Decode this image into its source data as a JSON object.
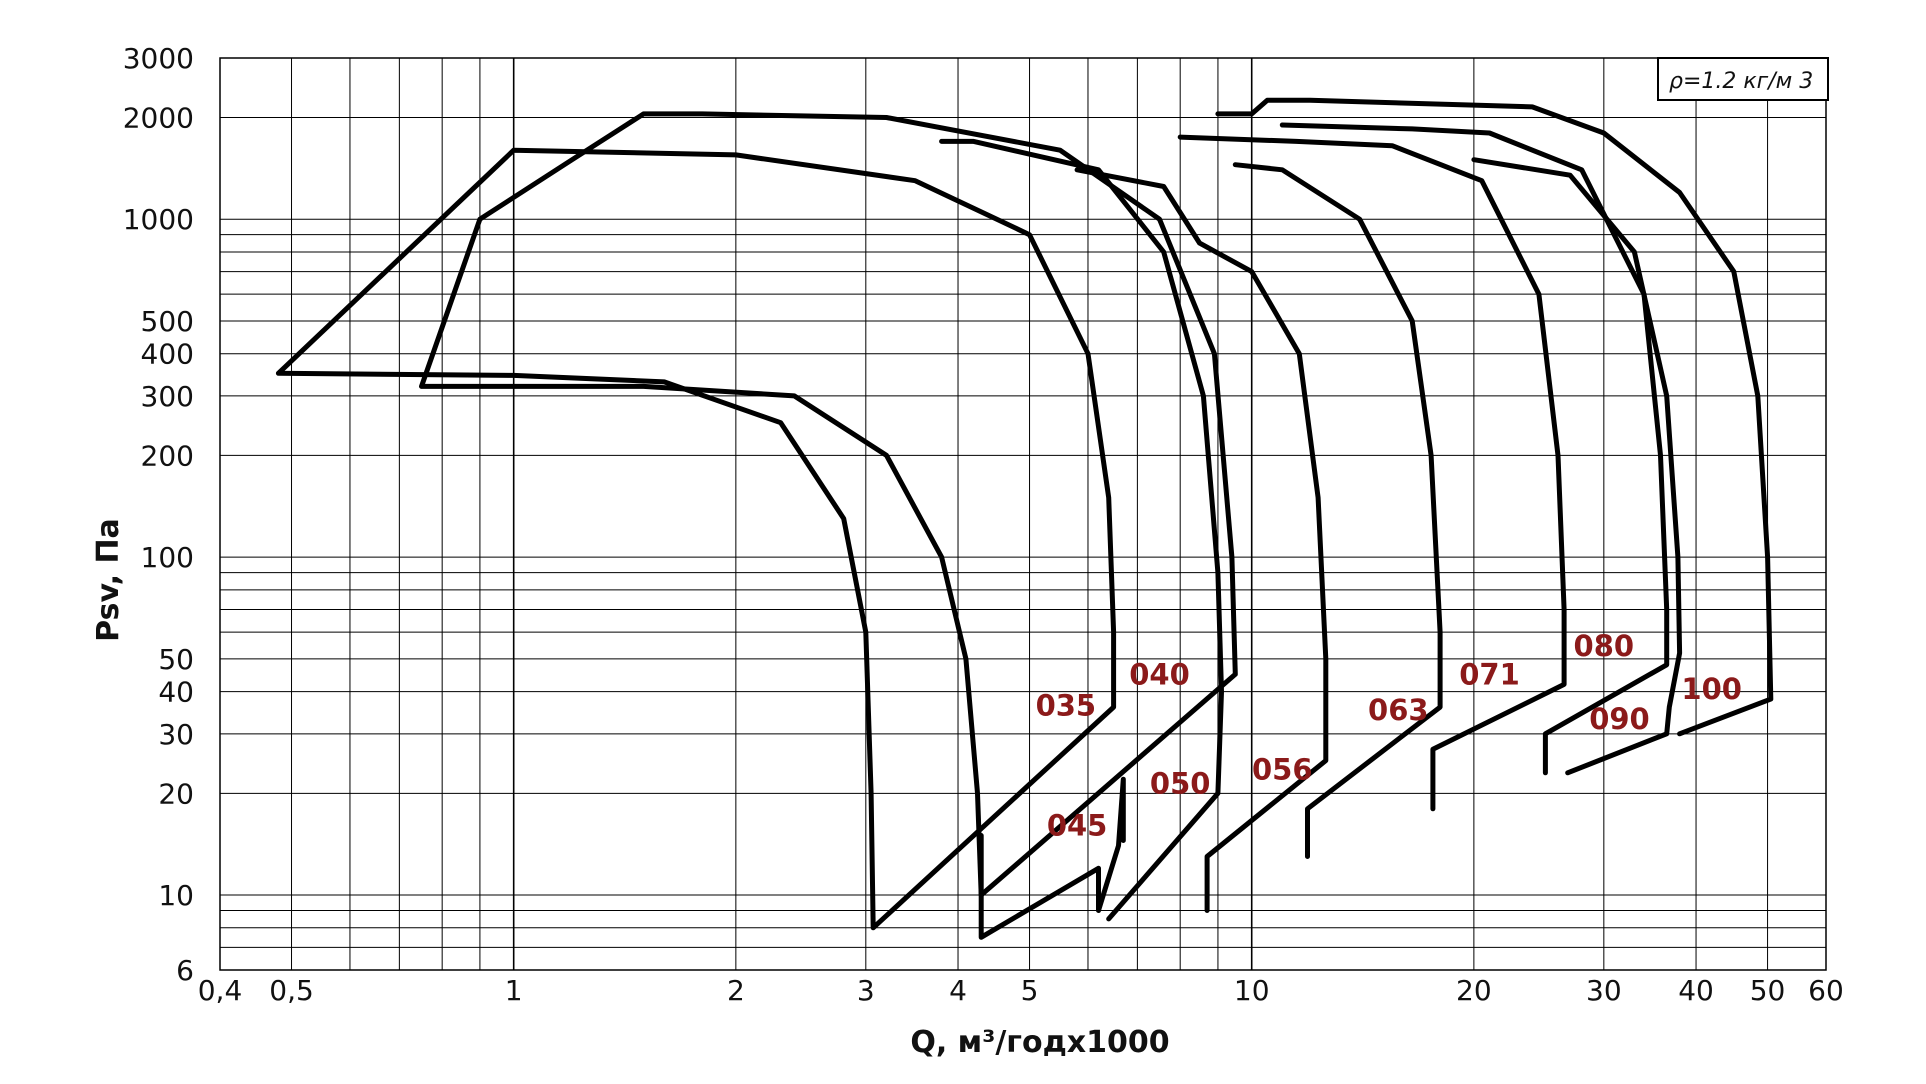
{
  "chart_data": {
    "type": "line",
    "xscale": "log",
    "yscale": "log",
    "xlim": [
      0.4,
      60
    ],
    "ylim": [
      6,
      3000
    ],
    "xlabel": "Q, м³/годx1000",
    "ylabel": "Psv, Па",
    "grid": true,
    "density_note": "ρ=1.2 кг/м 3",
    "x_ticks": [
      {
        "v": 0.4,
        "label": "0,4"
      },
      {
        "v": 0.5,
        "label": "0,5"
      },
      {
        "v": 1,
        "label": "1"
      },
      {
        "v": 2,
        "label": "2"
      },
      {
        "v": 3,
        "label": "3"
      },
      {
        "v": 4,
        "label": "4"
      },
      {
        "v": 5,
        "label": "5"
      },
      {
        "v": 10,
        "label": "10"
      },
      {
        "v": 20,
        "label": "20"
      },
      {
        "v": 30,
        "label": "30"
      },
      {
        "v": 40,
        "label": "40"
      },
      {
        "v": 50,
        "label": "50"
      },
      {
        "v": 60,
        "label": "60"
      }
    ],
    "y_ticks": [
      {
        "v": 6,
        "label": "6"
      },
      {
        "v": 10,
        "label": "10"
      },
      {
        "v": 20,
        "label": "20"
      },
      {
        "v": 30,
        "label": "30"
      },
      {
        "v": 40,
        "label": "40"
      },
      {
        "v": 50,
        "label": "50"
      },
      {
        "v": 100,
        "label": "100"
      },
      {
        "v": 200,
        "label": "200"
      },
      {
        "v": 300,
        "label": "300"
      },
      {
        "v": 400,
        "label": "400"
      },
      {
        "v": 500,
        "label": "500"
      },
      {
        "v": 1000,
        "label": "1000"
      },
      {
        "v": 2000,
        "label": "2000"
      },
      {
        "v": 3000,
        "label": "3000"
      }
    ],
    "series": [
      {
        "name": "035",
        "label_at": [
          5.6,
          34
        ],
        "points": [
          [
            0.48,
            350
          ],
          [
            1.0,
            345
          ],
          [
            1.6,
            330
          ],
          [
            2.3,
            250
          ],
          [
            2.8,
            130
          ],
          [
            3.0,
            60
          ],
          [
            3.05,
            20
          ],
          [
            3.07,
            8
          ],
          [
            6.5,
            36
          ],
          [
            6.5,
            60
          ],
          [
            6.4,
            150
          ],
          [
            6.0,
            400
          ],
          [
            5.0,
            900
          ],
          [
            3.5,
            1300
          ],
          [
            2.0,
            1550
          ],
          [
            1.0,
            1600
          ],
          [
            0.48,
            350
          ]
        ]
      },
      {
        "name": "040",
        "label_at": [
          7.5,
          42
        ],
        "points": [
          [
            0.75,
            320
          ],
          [
            1.5,
            320
          ],
          [
            2.4,
            300
          ],
          [
            3.2,
            200
          ],
          [
            3.8,
            100
          ],
          [
            4.1,
            50
          ],
          [
            4.25,
            20
          ],
          [
            4.3,
            10
          ],
          [
            9.5,
            45
          ],
          [
            9.4,
            100
          ],
          [
            8.9,
            400
          ],
          [
            7.5,
            1000
          ],
          [
            5.5,
            1600
          ],
          [
            3.2,
            2000
          ],
          [
            1.8,
            2050
          ],
          [
            1.5,
            2050
          ],
          [
            1.2,
            1500
          ],
          [
            0.9,
            1000
          ],
          [
            0.75,
            320
          ]
        ]
      },
      {
        "name": "045",
        "label_at": [
          5.8,
          15
        ],
        "points": [
          [
            4.3,
            15
          ],
          [
            4.3,
            7.5
          ],
          [
            6.2,
            12
          ],
          [
            6.2,
            9
          ],
          [
            6.6,
            14
          ],
          [
            6.7,
            22
          ],
          [
            6.7,
            14.5
          ]
        ]
      },
      {
        "name": "050",
        "label_at": [
          8.0,
          20
        ],
        "points": [
          [
            6.4,
            8.5
          ],
          [
            9.0,
            20
          ],
          [
            9.1,
            40
          ],
          [
            9.0,
            90
          ],
          [
            8.6,
            300
          ],
          [
            7.6,
            800
          ],
          [
            6.2,
            1400
          ],
          [
            4.2,
            1700
          ],
          [
            3.8,
            1700
          ]
        ]
      },
      {
        "name": "056",
        "label_at": [
          11.0,
          22
        ],
        "points": [
          [
            8.7,
            9
          ],
          [
            8.7,
            13
          ],
          [
            12.6,
            25
          ],
          [
            12.6,
            50
          ],
          [
            12.3,
            150
          ],
          [
            11.6,
            400
          ],
          [
            10.0,
            700
          ],
          [
            8.5,
            850
          ],
          [
            7.6,
            1250
          ],
          [
            5.8,
            1400
          ]
        ]
      },
      {
        "name": "063",
        "label_at": [
          15.8,
          33
        ],
        "points": [
          [
            11.9,
            13
          ],
          [
            11.9,
            18
          ],
          [
            18.0,
            36
          ],
          [
            18.0,
            60
          ],
          [
            17.5,
            200
          ],
          [
            16.5,
            500
          ],
          [
            14.0,
            1000
          ],
          [
            11.0,
            1400
          ],
          [
            9.5,
            1450
          ]
        ]
      },
      {
        "name": "071",
        "label_at": [
          21.0,
          42
        ],
        "points": [
          [
            17.6,
            18
          ],
          [
            17.6,
            27
          ],
          [
            26.5,
            42
          ],
          [
            26.5,
            70
          ],
          [
            26.0,
            200
          ],
          [
            24.5,
            600
          ],
          [
            20.5,
            1300
          ],
          [
            15.5,
            1650
          ],
          [
            11.5,
            1700
          ],
          [
            8.0,
            1750
          ]
        ]
      },
      {
        "name": "080",
        "label_at": [
          30.0,
          51
        ],
        "points": [
          [
            25.0,
            23
          ],
          [
            25.0,
            30
          ],
          [
            36.5,
            48
          ],
          [
            36.5,
            70
          ],
          [
            35.8,
            200
          ],
          [
            34.0,
            600
          ],
          [
            28.0,
            1400
          ],
          [
            21.0,
            1800
          ],
          [
            16.5,
            1850
          ],
          [
            11.0,
            1900
          ]
        ]
      },
      {
        "name": "090",
        "label_at": [
          31.5,
          31
        ],
        "points": [
          [
            26.8,
            23
          ],
          [
            36.5,
            30
          ],
          [
            36.8,
            36
          ],
          [
            38.0,
            52
          ],
          [
            37.8,
            100
          ],
          [
            36.5,
            300
          ],
          [
            33.0,
            800
          ],
          [
            27.0,
            1350
          ],
          [
            20.0,
            1500
          ]
        ]
      },
      {
        "name": "100",
        "label_at": [
          42.0,
          38
        ],
        "points": [
          [
            38.0,
            30
          ],
          [
            50.5,
            38
          ],
          [
            50.0,
            100
          ],
          [
            48.5,
            300
          ],
          [
            45.0,
            700
          ],
          [
            38.0,
            1200
          ],
          [
            30.0,
            1800
          ],
          [
            24.0,
            2150
          ],
          [
            12.0,
            2250
          ],
          [
            10.5,
            2250
          ],
          [
            10.0,
            2050
          ],
          [
            9.0,
            2050
          ]
        ]
      }
    ]
  }
}
